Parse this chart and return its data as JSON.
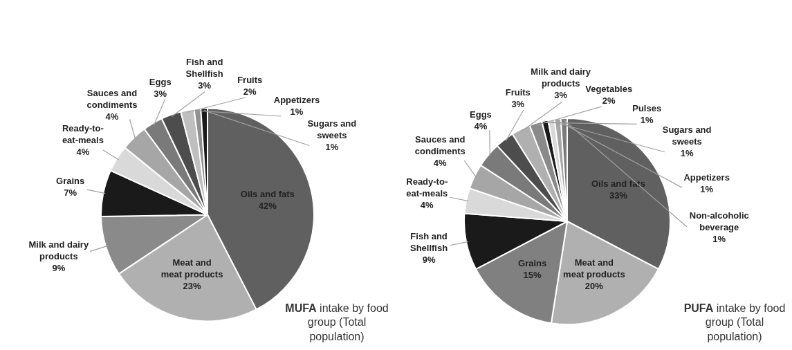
{
  "chart_data": [
    {
      "type": "pie",
      "title": "MUFA intake by food group (Total population)",
      "categories": [
        "Oils and fats",
        "Meat and meat products",
        "Milk and dairy products",
        "Grains",
        "Ready-to-eat-meals",
        "Sauces and condiments",
        "Eggs",
        "Fish and Shellfish",
        "Fruits",
        "Appetizers",
        "Sugars and sweets"
      ],
      "values": [
        42,
        23,
        9,
        7,
        4,
        4,
        3,
        3,
        2,
        1,
        1
      ],
      "value_labels": [
        "42%",
        "23%",
        "9%",
        "7%",
        "4%",
        "4%",
        "3%",
        "3%",
        "2%",
        "1%",
        "1%"
      ],
      "colors": [
        "#606060",
        "#b0b0b0",
        "#8a8a8a",
        "#1a1a1a",
        "#d9d9d9",
        "#a6a6a6",
        "#7a7a7a",
        "#4d4d4d",
        "#bfbfbf",
        "#909090",
        "#1a1a1a"
      ]
    },
    {
      "type": "pie",
      "title": "PUFA intake by food group (Total population)",
      "categories": [
        "Oils and fats",
        "Meat and meat products",
        "Grains",
        "Fish and Shellfish",
        "Ready-to-eat-meals",
        "Sauces and condiments",
        "Eggs",
        "Fruits",
        "Milk and dairy products",
        "Vegetables",
        "Pulses",
        "Sugars and sweets",
        "Appetizers",
        "Non-alcoholic beverage"
      ],
      "values": [
        33,
        20,
        15,
        9,
        4,
        4,
        4,
        3,
        3,
        2,
        1,
        1,
        1,
        1
      ],
      "value_labels": [
        "33%",
        "20%",
        "15%",
        "9%",
        "4%",
        "4%",
        "4%",
        "3%",
        "3%",
        "2%",
        "1%",
        "1%",
        "1%",
        "1%"
      ],
      "colors": [
        "#606060",
        "#b0b0b0",
        "#808080",
        "#1a1a1a",
        "#d9d9d9",
        "#a6a6a6",
        "#7a7a7a",
        "#4d4d4d",
        "#b0b0b0",
        "#8a8a8a",
        "#1a1a1a",
        "#d9d9d9",
        "#a6a6a6",
        "#7a7a7a"
      ]
    }
  ]
}
